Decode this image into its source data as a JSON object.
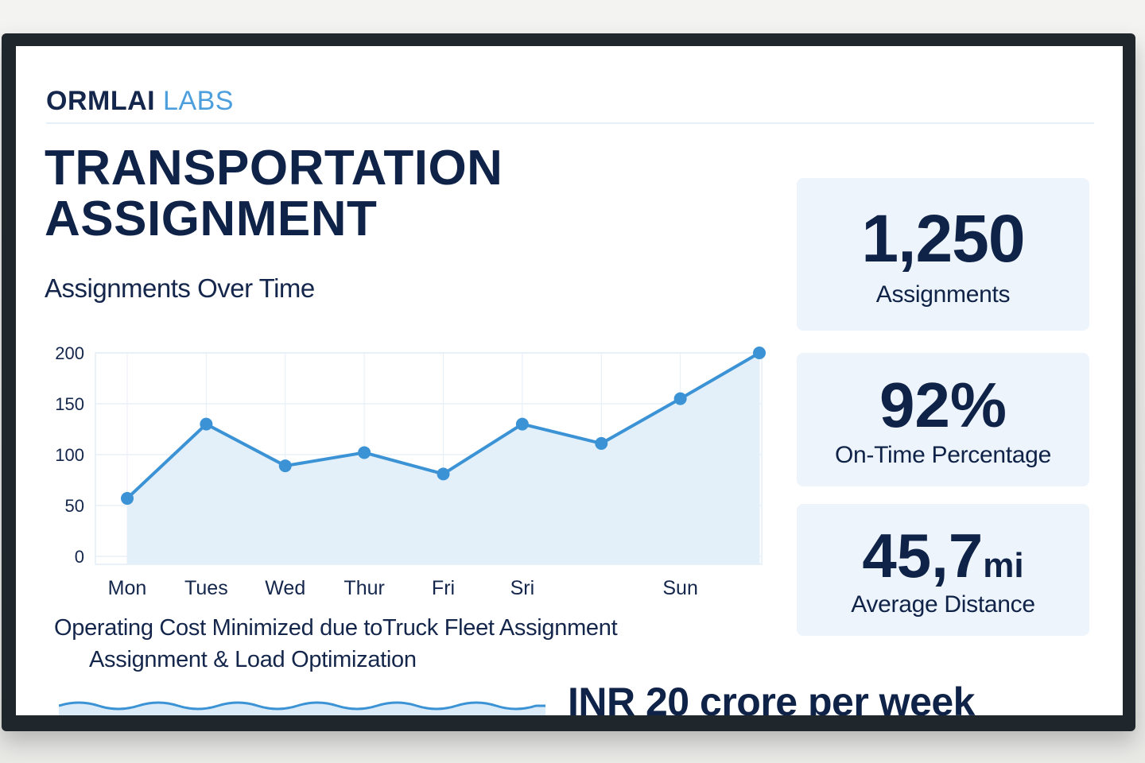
{
  "brand": {
    "name": "ORMLAI",
    "accent": "LABS"
  },
  "title": {
    "line1": "TRANSPORTATION",
    "line2": "ASSIGNMENT"
  },
  "chart_data": {
    "type": "line",
    "title": "Assignments Over Time",
    "xlabel": "",
    "ylabel": "",
    "ylim": [
      0,
      200
    ],
    "yticks": [
      "200",
      "150",
      "100",
      "50",
      "0"
    ],
    "categories": [
      "Mon",
      "Tues",
      "Wed",
      "Thur",
      "Fri",
      "Sri",
      "",
      "Sun",
      ""
    ],
    "series": [
      {
        "values": [
          57,
          130,
          89,
          102,
          81,
          130,
          111,
          155,
          200
        ]
      }
    ],
    "grid": true,
    "fill": true,
    "colors": {
      "line": "#3b93d5",
      "fill": "#e3eff9",
      "grid": "#e4eef7"
    }
  },
  "kpis": [
    {
      "value": "1,250",
      "label": "Assignments"
    },
    {
      "value": "92%",
      "label": "On-Time Percentage"
    },
    {
      "value": "45,7",
      "unit": "mi",
      "label": "Average Distance"
    }
  ],
  "cost": {
    "line1": "Operating Cost Minimized due toTruck Fleet Assignment",
    "line2": "Assignment & Load Optimization",
    "savings": "INR 20 crore per week"
  },
  "colors": {
    "navy": "#0f2247",
    "accent": "#4c9fdc",
    "card_bg": "#eef4fb"
  }
}
